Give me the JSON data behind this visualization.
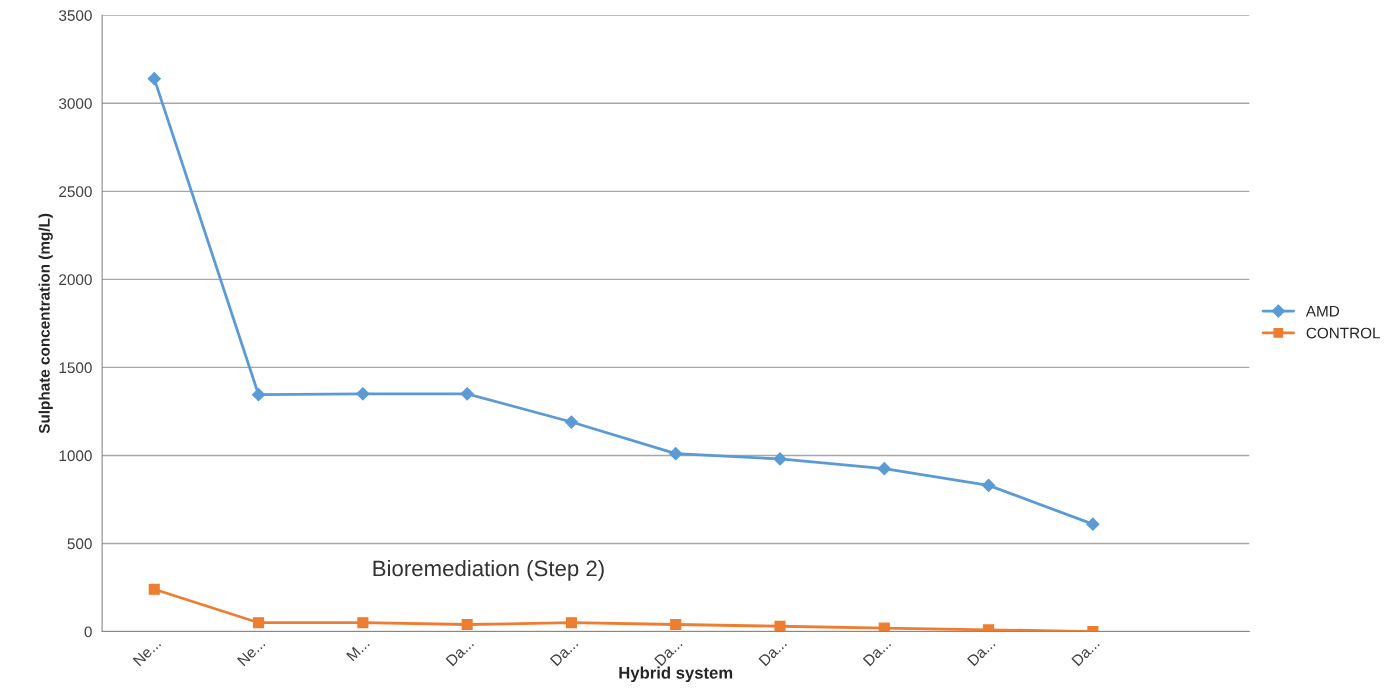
{
  "chart_data": {
    "type": "line",
    "xlabel": "Hybrid system",
    "ylabel": "Sulphate concentration (mg/L)",
    "categories": [
      "Ne...",
      "Ne...",
      "M...",
      "Da...",
      "Da...",
      "Da...",
      "Da...",
      "Da...",
      "Da...",
      "Da...",
      null
    ],
    "series": [
      {
        "name": "AMD",
        "color": "#5b9bd5",
        "marker": "diamond",
        "values": [
          3140,
          1345,
          1350,
          1350,
          1190,
          1010,
          980,
          925,
          830,
          610,
          null
        ]
      },
      {
        "name": "CONTROL",
        "color": "#ed7d31",
        "marker": "square",
        "values": [
          240,
          50,
          50,
          40,
          50,
          40,
          30,
          20,
          10,
          0,
          null
        ]
      }
    ],
    "ylim": [
      0,
      3500
    ],
    "yticks": [
      0,
      500,
      1000,
      1500,
      2000,
      2500,
      3000,
      3500
    ],
    "grid": "y",
    "legend": "right",
    "annotations": [
      "Bioremediation (Step 2)"
    ]
  }
}
